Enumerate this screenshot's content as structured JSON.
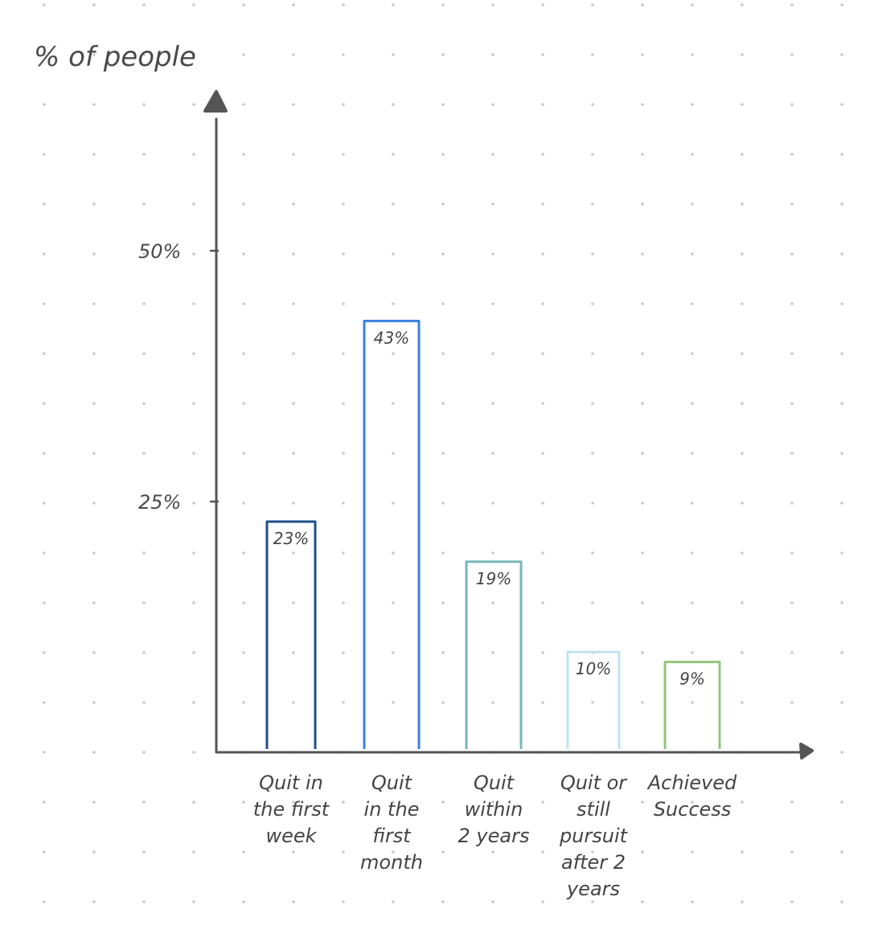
{
  "chart_data": {
    "type": "bar",
    "ylabel": "% of people",
    "yticks": [
      {
        "value": 25,
        "label": "25%"
      },
      {
        "value": 50,
        "label": "50%"
      }
    ],
    "categories": [
      [
        "Quit in",
        "the first",
        "week"
      ],
      [
        "Quit",
        "in the",
        "first",
        "month"
      ],
      [
        "Quit",
        "within",
        "2 years"
      ],
      [
        "Quit or",
        "still",
        "pursuit",
        "after 2",
        "years"
      ],
      [
        "Achieved",
        "Success"
      ]
    ],
    "values": [
      23,
      43,
      19,
      10,
      9
    ],
    "value_labels": [
      "23%",
      "43%",
      "19%",
      "10%",
      "9%"
    ],
    "colors": [
      "#1f4e8c",
      "#3a80e0",
      "#79b6b8",
      "#bfe3ee",
      "#93c47d"
    ],
    "ylim": [
      0,
      60
    ],
    "grid": "dotted background",
    "legend": "none"
  }
}
